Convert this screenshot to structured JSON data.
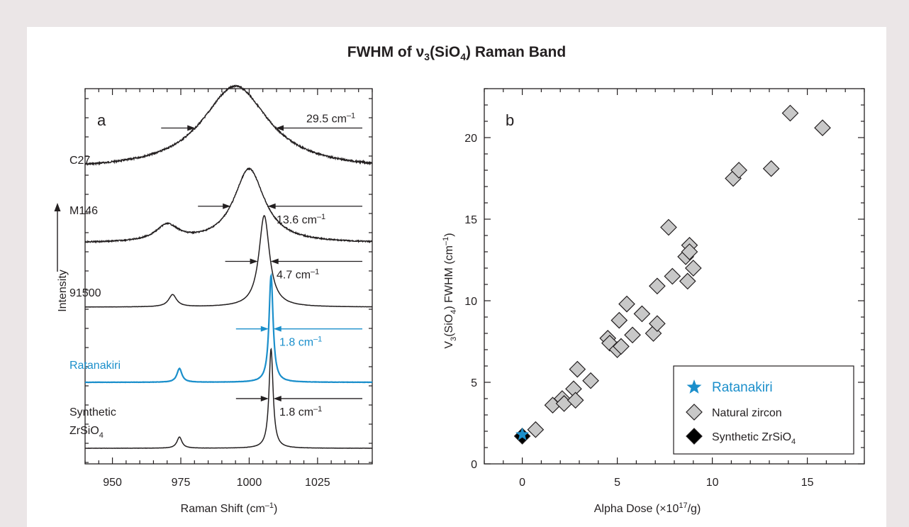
{
  "figure_title": {
    "before": "FWHM of ν",
    "sub": "3",
    "middle": "(SiO",
    "sub2": "4",
    "after": ") Raman Band"
  },
  "colors": {
    "background": "#ebe6e7",
    "panel": "#ffffff",
    "ink": "#231f20",
    "ratanakiri": "#1b8fcb",
    "natural_fill": "#c8c8c8",
    "synthetic_fill": "#000000"
  },
  "chart_data": [
    {
      "type": "line",
      "panel_label": "a",
      "xlabel": "Raman Shift (cm",
      "xlabel_sup": "–1",
      "xlabel_end": ")",
      "ylabel": "Intensity",
      "xlim": [
        940,
        1045
      ],
      "xticks": [
        950,
        975,
        1000,
        1025
      ],
      "y_ticks_shown": false,
      "series": [
        {
          "name": "C27",
          "color": "#231f20",
          "baseline": 0.07,
          "peaks": [
            {
              "center": 995,
              "fwhm": 29.5,
              "height": 0.5
            }
          ],
          "annotation": {
            "text": "29.5 cm",
            "sup": "–1",
            "value": 29.5
          }
        },
        {
          "name": "M146",
          "color": "#231f20",
          "baseline": 0.0,
          "peaks": [
            {
              "center": 1000,
              "fwhm": 13.6,
              "height": 0.55
            },
            {
              "center": 970,
              "fwhm": 10,
              "height": 0.12
            }
          ],
          "annotation": {
            "text": "13.6 cm",
            "sup": "–1",
            "value": 13.6
          }
        },
        {
          "name": "91500",
          "color": "#231f20",
          "baseline": 0.0,
          "peaks": [
            {
              "center": 1005.5,
              "fwhm": 4.7,
              "height": 0.6
            },
            {
              "center": 972,
              "fwhm": 3.5,
              "height": 0.08
            }
          ],
          "annotation": {
            "text": "4.7 cm",
            "sup": "–1",
            "value": 4.7
          }
        },
        {
          "name": "Ratanakiri",
          "color": "#1b8fcb",
          "baseline": 0.0,
          "peaks": [
            {
              "center": 1008,
              "fwhm": 1.8,
              "height": 0.62
            },
            {
              "center": 974.5,
              "fwhm": 2.2,
              "height": 0.08
            }
          ],
          "annotation": {
            "text": "1.8 cm",
            "sup": "–1",
            "value": 1.8
          }
        },
        {
          "name": "Synthetic",
          "name_line2": "ZrSiO",
          "name_line2_sub": "4",
          "color": "#231f20",
          "baseline": 0.0,
          "peaks": [
            {
              "center": 1008,
              "fwhm": 1.8,
              "height": 0.62
            },
            {
              "center": 974.5,
              "fwhm": 2.2,
              "height": 0.07
            }
          ],
          "annotation": {
            "text": "1.8 cm",
            "sup": "–1",
            "value": 1.8
          }
        }
      ]
    },
    {
      "type": "scatter",
      "panel_label": "b",
      "xlabel": "Alpha Dose (×10",
      "xlabel_sup": "17",
      "xlabel_end": "/g)",
      "ylabel": "V",
      "ylabel_sub": "3",
      "ylabel_mid": "(SiO",
      "ylabel_sub2": "4",
      "ylabel_end": ") FWHM (cm",
      "ylabel_sup": "–1",
      "ylabel_close": ")",
      "xlim": [
        -2,
        18
      ],
      "ylim": [
        0,
        23
      ],
      "xticks": [
        0,
        5,
        10,
        15
      ],
      "yticks": [
        0,
        5,
        10,
        15,
        20
      ],
      "grid": false,
      "legend_position": "bottom-right",
      "series": [
        {
          "name": "Ratanakiri",
          "marker": "star",
          "color": "#1b8fcb",
          "points": [
            [
              0.0,
              1.8
            ]
          ]
        },
        {
          "name": "Natural zircon",
          "marker": "diamond",
          "color": "#c8c8c8",
          "points": [
            [
              0.7,
              2.1
            ],
            [
              1.6,
              3.6
            ],
            [
              2.1,
              4.0
            ],
            [
              2.2,
              3.7
            ],
            [
              2.7,
              4.6
            ],
            [
              2.8,
              3.9
            ],
            [
              2.9,
              5.8
            ],
            [
              3.6,
              5.1
            ],
            [
              4.5,
              7.7
            ],
            [
              4.6,
              7.4
            ],
            [
              5.0,
              7.0
            ],
            [
              5.2,
              7.2
            ],
            [
              5.1,
              8.8
            ],
            [
              5.5,
              9.8
            ],
            [
              5.8,
              7.9
            ],
            [
              6.3,
              9.2
            ],
            [
              6.9,
              8.0
            ],
            [
              7.1,
              8.6
            ],
            [
              7.1,
              10.9
            ],
            [
              7.7,
              14.5
            ],
            [
              7.9,
              11.5
            ],
            [
              8.6,
              12.7
            ],
            [
              8.7,
              11.2
            ],
            [
              8.8,
              13.4
            ],
            [
              8.8,
              13.0
            ],
            [
              9.0,
              12.0
            ],
            [
              11.1,
              17.5
            ],
            [
              11.4,
              18.0
            ],
            [
              13.1,
              18.1
            ],
            [
              14.1,
              21.5
            ],
            [
              15.8,
              20.6
            ]
          ]
        },
        {
          "name": "Synthetic ZrSiO",
          "name_sub": "4",
          "marker": "diamond",
          "color": "#000000",
          "points": [
            [
              0.0,
              1.7
            ]
          ]
        }
      ]
    }
  ]
}
